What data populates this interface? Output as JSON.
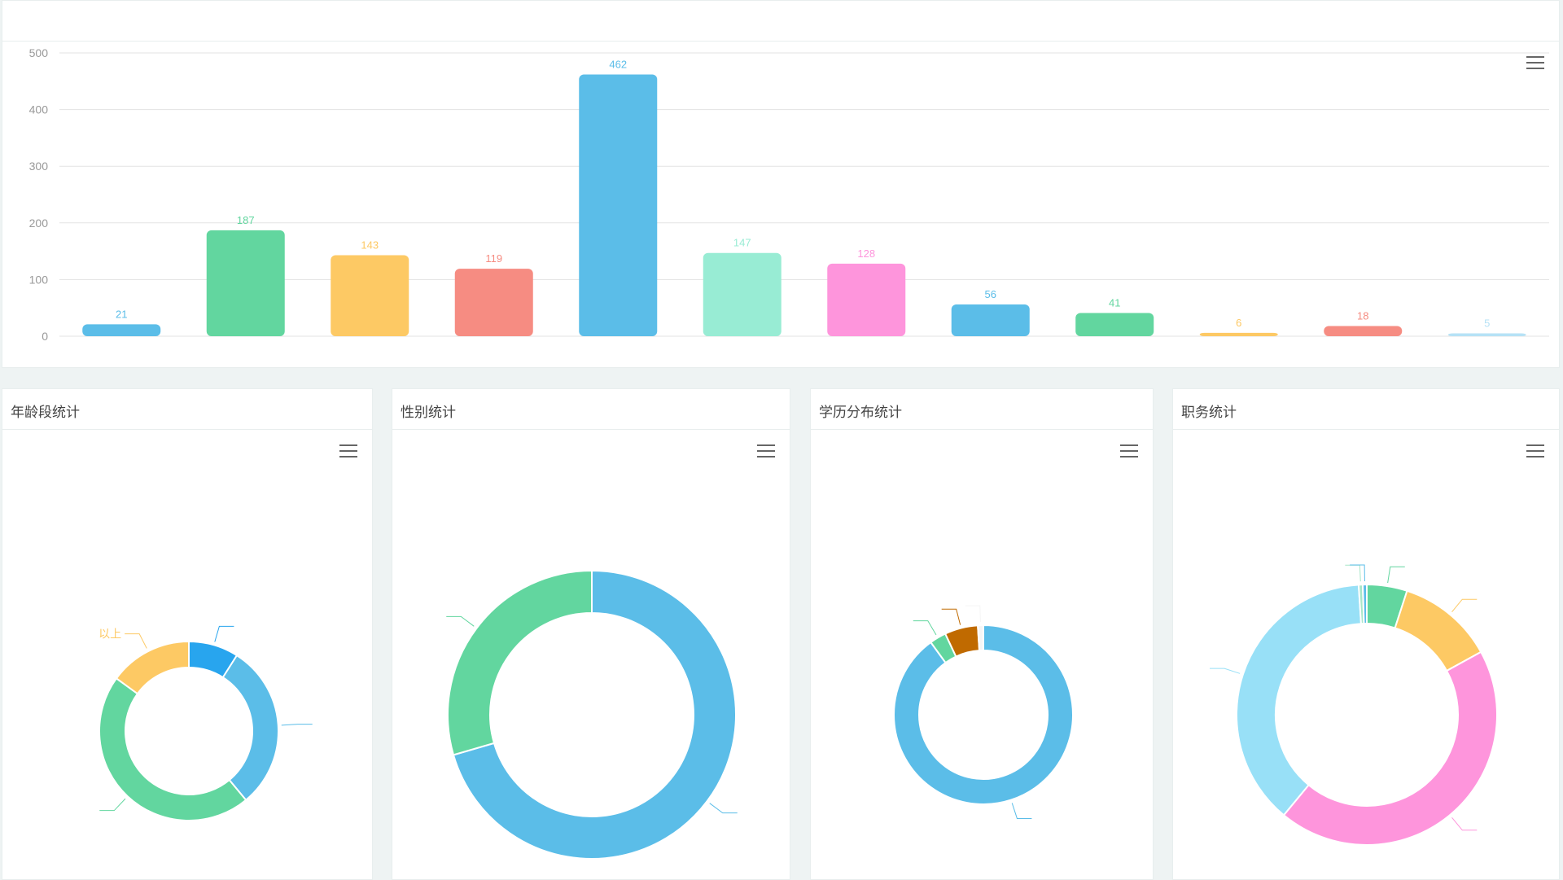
{
  "bar_panel": {
    "title": "",
    "menu_icon": "hamburger-menu-icon"
  },
  "pie_panels": [
    {
      "title": "年龄段统计",
      "menu_icon": "hamburger-menu-icon"
    },
    {
      "title": "性别统计",
      "menu_icon": "hamburger-menu-icon"
    },
    {
      "title": "学历分布统计",
      "menu_icon": "hamburger-menu-icon"
    },
    {
      "title": "职务统计",
      "menu_icon": "hamburger-menu-icon"
    }
  ],
  "chart_data": [
    {
      "type": "bar",
      "title": "",
      "ylabel": "",
      "ylim": [
        0,
        500
      ],
      "yticks": [
        "0",
        "100",
        "200",
        "300",
        "400",
        "500"
      ],
      "categories": [
        "",
        "",
        "",
        "",
        "",
        "",
        "",
        "",
        "",
        "",
        "",
        ""
      ],
      "values": [
        21,
        187,
        143,
        119,
        462,
        147,
        128,
        56,
        41,
        6,
        18,
        5
      ],
      "colors": [
        "#5bbde8",
        "#62d69f",
        "#fdc964",
        "#f68c82",
        "#5bbde8",
        "#98ecd4",
        "#fe95dc",
        "#5bbde8",
        "#62d69f",
        "#fdc964",
        "#f68c82",
        "#b6e2f6"
      ],
      "grid": true
    },
    {
      "type": "pie",
      "title": "年龄段统计",
      "slices": [
        {
          "label": "",
          "value": 9,
          "color": "#28a5ee"
        },
        {
          "label": "",
          "value": 30,
          "color": "#5bbde8"
        },
        {
          "label": "",
          "value": 46,
          "color": "#62d69f"
        },
        {
          "label": "以上",
          "value": 15,
          "color": "#fdc964"
        }
      ]
    },
    {
      "type": "pie",
      "title": "性别统计",
      "slices": [
        {
          "label": "",
          "value": 70.5,
          "color": "#5bbde8"
        },
        {
          "label": "",
          "value": 29.5,
          "color": "#62d69f"
        }
      ]
    },
    {
      "type": "pie",
      "title": "学历分布统计",
      "slices": [
        {
          "label": "",
          "value": 90,
          "color": "#5bbde8"
        },
        {
          "label": "",
          "value": 3,
          "color": "#62d69f"
        },
        {
          "label": "",
          "value": 6,
          "color": "#c06a00"
        },
        {
          "label": "",
          "value": 1,
          "color": "#f5f5f5"
        }
      ]
    },
    {
      "type": "pie",
      "title": "职务统计",
      "slices": [
        {
          "label": "",
          "value": 5,
          "color": "#62d69f"
        },
        {
          "label": "",
          "value": 12,
          "color": "#fdc964"
        },
        {
          "label": "",
          "value": 44,
          "color": "#fe95dc"
        },
        {
          "label": "",
          "value": 38,
          "color": "#98e0f7"
        },
        {
          "label": "",
          "value": 0.5,
          "color": "#a8e6c8"
        },
        {
          "label": "",
          "value": 0.5,
          "color": "#5bbde8"
        }
      ]
    }
  ]
}
